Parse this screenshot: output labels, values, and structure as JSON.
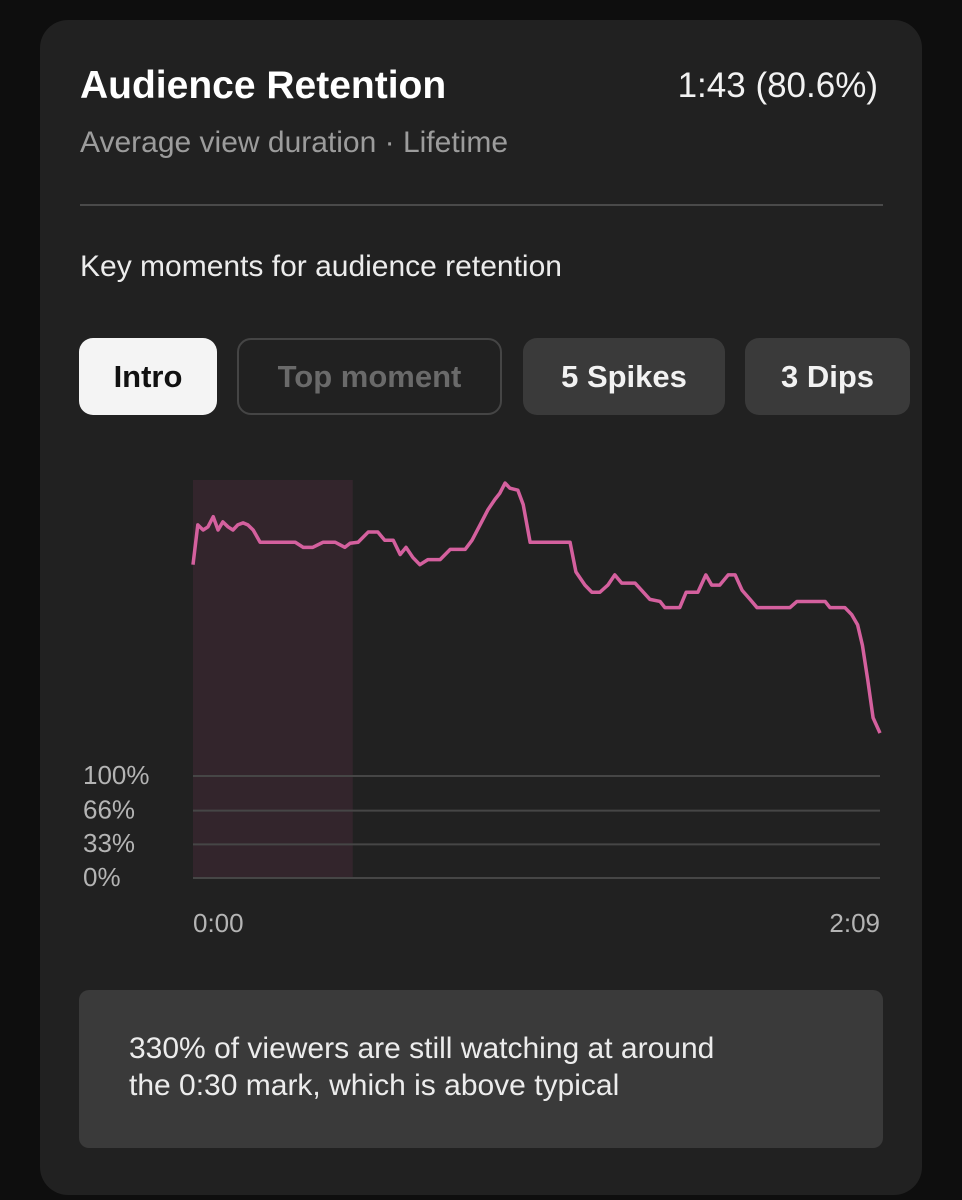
{
  "header": {
    "title": "Audience Retention",
    "value": "1:43 (80.6%)",
    "subtitle": "Average view duration · Lifetime"
  },
  "section_title": "Key moments for audience retention",
  "tabs": [
    "Intro",
    "Top moment",
    "5 Spikes",
    "3 Dips"
  ],
  "chart_data": {
    "type": "line",
    "color": "#d4609e",
    "x": [
      0,
      0.9,
      1.9,
      2.8,
      3.8,
      4.7,
      5.6,
      6.6,
      7.5,
      8.4,
      9.4,
      10.3,
      11.3,
      12.6,
      14.5,
      16.3,
      19.2,
      20.7,
      22.5,
      24.4,
      26.7,
      28.5,
      29.5,
      31.0,
      32.9,
      34.7,
      36.0,
      37.6,
      38.9,
      40.0,
      41.3,
      42.6,
      44.1,
      46.4,
      48.3,
      51.1,
      52.4,
      53.9,
      55.4,
      56.7,
      57.6,
      58.6,
      59.5,
      61.0,
      62.0,
      63.3,
      70.8,
      71.9,
      73.6,
      74.9,
      76.4,
      77.9,
      79.2,
      80.5,
      83.0,
      85.8,
      87.7,
      88.6,
      91.4,
      92.6,
      94.8,
      96.3,
      97.4,
      98.9,
      100.5,
      101.8,
      103.1,
      104.6,
      105.9,
      112.1,
      113.4,
      118.7,
      119.6,
      122.4,
      123.7,
      124.8,
      125.7,
      126.7,
      127.7,
      129
    ],
    "values": [
      307,
      346,
      341,
      344,
      354,
      341,
      349,
      344,
      341,
      346,
      348,
      346,
      341,
      329,
      329,
      329,
      329,
      324,
      324,
      329,
      329,
      324,
      328,
      329,
      339,
      339,
      331,
      331,
      317,
      324,
      314,
      307,
      312,
      312,
      322,
      322,
      331,
      346,
      361,
      371,
      377,
      387,
      382,
      380,
      366,
      329,
      329,
      300,
      287,
      280,
      280,
      287,
      297,
      289,
      289,
      273,
      271,
      265,
      265,
      280,
      280,
      297,
      287,
      287,
      297,
      297,
      282,
      273,
      265,
      265,
      271,
      271,
      265,
      265,
      258,
      248,
      228,
      194,
      157,
      142
    ],
    "xlim": [
      0,
      129
    ],
    "xticks": [
      {
        "value": 0,
        "label": "0:00"
      },
      {
        "value": 129,
        "label": "2:09"
      }
    ],
    "ylim": [
      0,
      390
    ],
    "yticks": [
      {
        "value": 0,
        "label": "0%"
      },
      {
        "value": 33,
        "label": "33%"
      },
      {
        "value": 66,
        "label": "66%"
      },
      {
        "value": 100,
        "label": "100%"
      }
    ],
    "grid": true,
    "highlight": [
      0,
      30
    ]
  },
  "insight": [
    "330% of viewers are still watching at around",
    "the 0:30 mark, which is above typical"
  ]
}
